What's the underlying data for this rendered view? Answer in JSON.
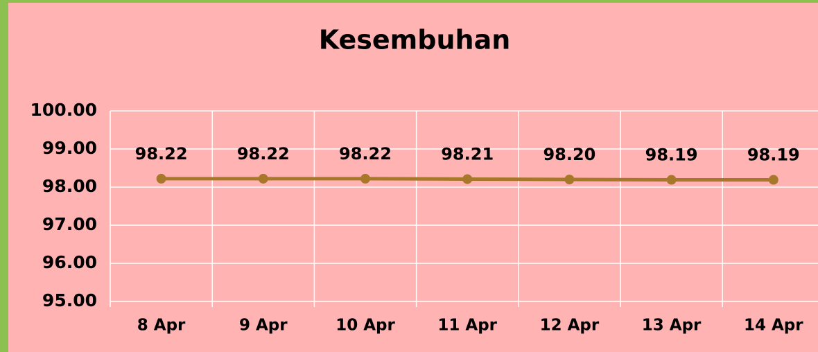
{
  "chart_data": {
    "type": "line",
    "title": "Kesembuhan",
    "categories": [
      "8 Apr",
      "9 Apr",
      "10 Apr",
      "11 Apr",
      "12 Apr",
      "13 Apr",
      "14 Apr"
    ],
    "series": [
      {
        "name": "Kesembuhan",
        "color": "#a8782a",
        "values": [
          98.22,
          98.22,
          98.22,
          98.21,
          98.2,
          98.19,
          98.19
        ],
        "value_labels": [
          "98.22",
          "98.22",
          "98.22",
          "98.21",
          "98.20",
          "98.19",
          "98.19"
        ]
      }
    ],
    "ylim": [
      95,
      100
    ],
    "yticks": [
      {
        "value": 95,
        "label": "95.00"
      },
      {
        "value": 96,
        "label": "96.00"
      },
      {
        "value": 97,
        "label": "97.00"
      },
      {
        "value": 98,
        "label": "98.00"
      },
      {
        "value": 99,
        "label": "99.00"
      },
      {
        "value": 100,
        "label": "100.00"
      }
    ],
    "grid": true
  }
}
